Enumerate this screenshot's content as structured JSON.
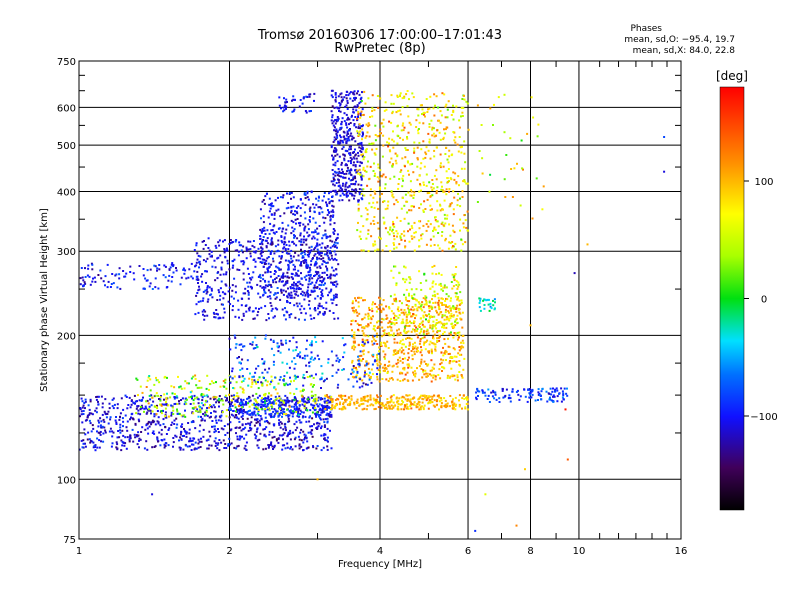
{
  "chart_data": {
    "type": "scatter",
    "title": "Tromsø 20160306 17:00:00–17:01:43",
    "subtitle": "RwPretec (8p)",
    "xlabel": "Frequency [MHz]",
    "ylabel": "Stationary phase Virtual Height [km]",
    "x_scale": "log",
    "y_scale": "log",
    "xlim": [
      1,
      16
    ],
    "ylim": [
      75,
      750
    ],
    "x_ticks": [
      1,
      2,
      4,
      6,
      8,
      10,
      16
    ],
    "x_tick_labels": [
      "1",
      "2",
      "4",
      "6",
      "8",
      "10",
      "16"
    ],
    "y_ticks": [
      75,
      100,
      200,
      300,
      400,
      500,
      600,
      750
    ],
    "y_tick_labels": [
      "75",
      "100",
      "200",
      "300",
      "400",
      "500",
      "600",
      "750"
    ],
    "grid": true,
    "stats": {
      "heading": "Phases",
      "line_o": "mean, sd,O: −95.4, 19.7",
      "line_x": "mean, sd,X:  84.0, 22.8"
    },
    "colorbar": {
      "label": "[deg]",
      "min": -180,
      "max": 180,
      "ticks": [
        100,
        0,
        -100
      ],
      "tick_labels": [
        "100",
        "0",
        "−100"
      ]
    },
    "clusters": [
      {
        "f": [
          1.0,
          3.2
        ],
        "h": [
          115,
          150
        ],
        "phase": -110,
        "spread": 25,
        "n": 900
      },
      {
        "f": [
          2.0,
          3.2
        ],
        "h": [
          135,
          148
        ],
        "phase": -95,
        "spread": 20,
        "n": 250
      },
      {
        "f": [
          1.3,
          3.0
        ],
        "h": [
          135,
          165
        ],
        "phase": 40,
        "spread": 60,
        "n": 300
      },
      {
        "f": [
          3.1,
          6.0
        ],
        "h": [
          140,
          150
        ],
        "phase": 100,
        "spread": 25,
        "n": 320
      },
      {
        "f": [
          1.7,
          3.3
        ],
        "h": [
          215,
          320
        ],
        "phase": -105,
        "spread": 20,
        "n": 550
      },
      {
        "f": [
          2.3,
          3.3
        ],
        "h": [
          240,
          400
        ],
        "phase": -105,
        "spread": 25,
        "n": 500
      },
      {
        "f": [
          1.0,
          1.75
        ],
        "h": [
          250,
          285
        ],
        "phase": -100,
        "spread": 25,
        "n": 110
      },
      {
        "f": [
          3.2,
          3.7
        ],
        "h": [
          380,
          650
        ],
        "phase": -110,
        "spread": 20,
        "n": 400
      },
      {
        "f": [
          2.5,
          3.0
        ],
        "h": [
          585,
          640
        ],
        "phase": -100,
        "spread": 20,
        "n": 40
      },
      {
        "f": [
          3.6,
          6.0
        ],
        "h": [
          300,
          650
        ],
        "phase": 80,
        "spread": 45,
        "n": 650
      },
      {
        "f": [
          3.5,
          5.9
        ],
        "h": [
          160,
          240
        ],
        "phase": 100,
        "spread": 35,
        "n": 700
      },
      {
        "f": [
          2.0,
          4.0
        ],
        "h": [
          155,
          200
        ],
        "phase": -80,
        "spread": 40,
        "n": 220
      },
      {
        "f": [
          4.2,
          5.8
        ],
        "h": [
          200,
          280
        ],
        "phase": 60,
        "spread": 40,
        "n": 200
      },
      {
        "f": [
          6.2,
          9.5
        ],
        "h": [
          145,
          155
        ],
        "phase": -90,
        "spread": 25,
        "n": 120
      },
      {
        "f": [
          6.3,
          6.8
        ],
        "h": [
          225,
          240
        ],
        "phase": -30,
        "spread": 30,
        "n": 25
      },
      {
        "f": [
          6.0,
          8.5
        ],
        "h": [
          350,
          650
        ],
        "phase": 60,
        "spread": 50,
        "n": 35
      }
    ],
    "points": [
      {
        "f": 1.4,
        "h": 93,
        "phase": -110
      },
      {
        "f": 3.0,
        "h": 100,
        "phase": 100
      },
      {
        "f": 6.5,
        "h": 93,
        "phase": 60
      },
      {
        "f": 7.8,
        "h": 105,
        "phase": 90
      },
      {
        "f": 7.5,
        "h": 80,
        "phase": 120
      },
      {
        "f": 9.5,
        "h": 110,
        "phase": 140
      },
      {
        "f": 9.4,
        "h": 140,
        "phase": 170
      },
      {
        "f": 9.8,
        "h": 270,
        "phase": -120
      },
      {
        "f": 10.4,
        "h": 310,
        "phase": 100
      },
      {
        "f": 14.8,
        "h": 520,
        "phase": -80
      },
      {
        "f": 14.8,
        "h": 440,
        "phase": -110
      },
      {
        "f": 8.5,
        "h": 410,
        "phase": 110
      },
      {
        "f": 8.0,
        "h": 210,
        "phase": 100
      },
      {
        "f": 6.2,
        "h": 78,
        "phase": -90
      }
    ]
  }
}
